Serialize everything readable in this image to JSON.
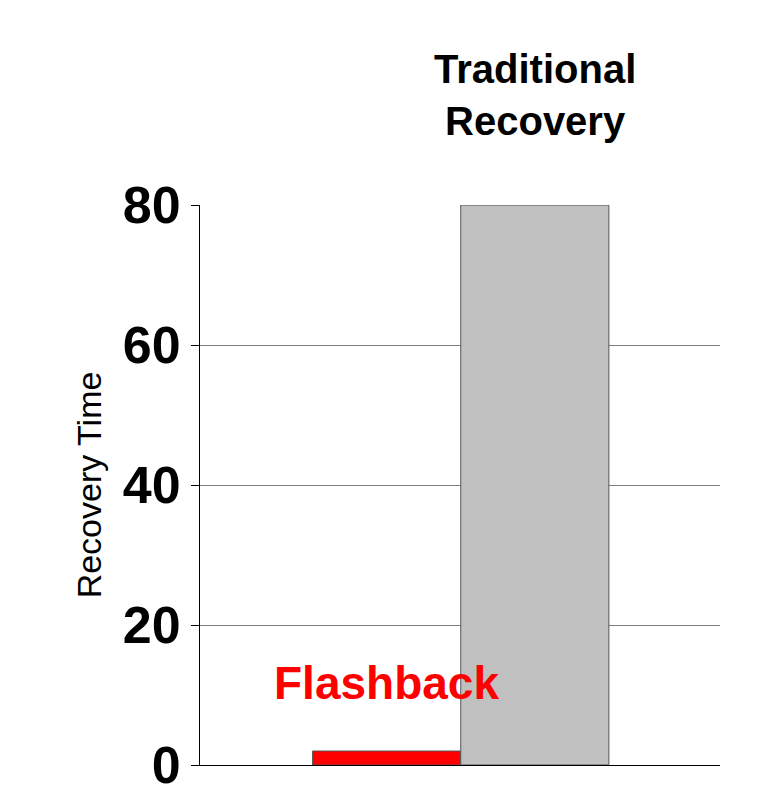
{
  "chart_data": {
    "type": "bar",
    "categories": [
      "Flashback",
      "Traditional Recovery"
    ],
    "values": [
      2,
      80
    ],
    "colors": [
      "#ff0000",
      "#c0c0c0"
    ],
    "y_label": "Recovery Time",
    "ylim": [
      0,
      80
    ],
    "yticks": [
      0,
      20,
      40,
      60,
      80
    ],
    "grid": true,
    "tick_labels": "y"
  }
}
